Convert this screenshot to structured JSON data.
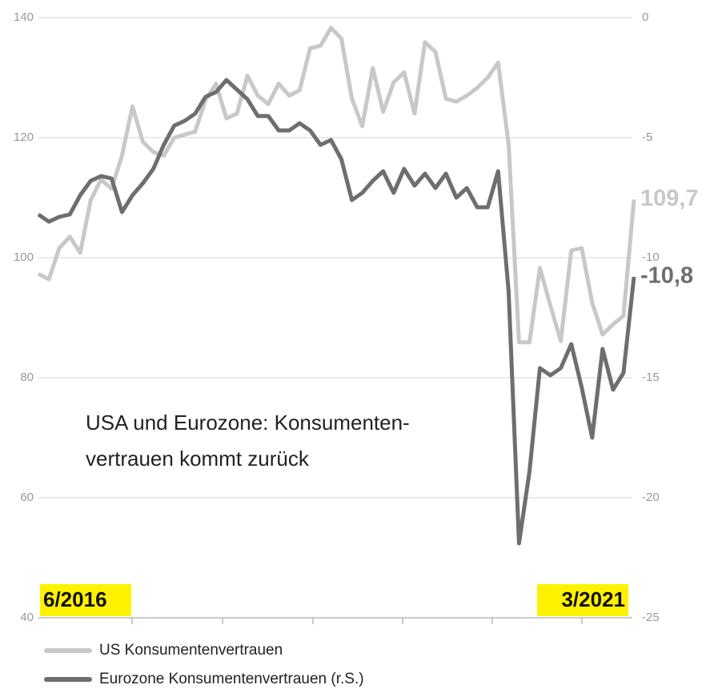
{
  "chart_data": {
    "type": "line",
    "title": [
      "USA und Eurozone: Konsumenten-",
      "vertrauen kommt zurück"
    ],
    "categories": [
      "6/2016",
      null,
      null,
      null,
      null,
      null,
      null,
      null,
      null,
      null,
      null,
      null,
      null,
      null,
      null,
      null,
      null,
      null,
      null,
      null,
      null,
      null,
      null,
      null,
      null,
      null,
      null,
      null,
      null,
      null,
      null,
      null,
      null,
      null,
      null,
      null,
      null,
      null,
      null,
      null,
      null,
      null,
      null,
      null,
      null,
      null,
      null,
      null,
      null,
      null,
      null,
      null,
      null,
      null,
      null,
      null,
      null,
      "3/2021"
    ],
    "ylim": [
      40,
      140
    ],
    "yticks": [
      40,
      60,
      80,
      100,
      120,
      140
    ],
    "y2lim": [
      -25,
      0
    ],
    "y2ticks": [
      -25,
      -20,
      -15,
      -10,
      -5,
      0
    ],
    "grid": true,
    "series": [
      {
        "name": "US Konsumentenvertrauen",
        "color": "#c8c8c8",
        "end_label": "109,7",
        "values": [
          97.3,
          96.4,
          101.6,
          103.5,
          100.8,
          109.6,
          113,
          111.5,
          117,
          125.2,
          119.3,
          117.6,
          117,
          120,
          120.5,
          121,
          126.3,
          129,
          123.2,
          124,
          130.3,
          127,
          125.6,
          129,
          127,
          127.9,
          134.9,
          135.3,
          138.3,
          136.5,
          126.5,
          121.9,
          131.6,
          124.3,
          129.2,
          130.9,
          124,
          135.9,
          134.3,
          126.5,
          126,
          127,
          128.3,
          130,
          132.5,
          118.9,
          85.9,
          85.9,
          98.3,
          92,
          86.1,
          101.2,
          101.6,
          92.5,
          87.2,
          88.9,
          90.3,
          109.7
        ]
      },
      {
        "name": "Eurozone Konsumentenvertrauen (r.S.)",
        "color": "#6e6e70",
        "axis": "y2",
        "end_label": "-10,8",
        "values": [
          -8.2,
          -8.5,
          -8.3,
          -8.2,
          -7.4,
          -6.8,
          -6.6,
          -6.7,
          -8.1,
          -7.4,
          -6.9,
          -6.3,
          -5.3,
          -4.5,
          -4.3,
          -4.0,
          -3.3,
          -3.1,
          -2.6,
          -3.0,
          -3.4,
          -4.1,
          -4.1,
          -4.7,
          -4.7,
          -4.4,
          -4.7,
          -5.3,
          -5.1,
          -5.9,
          -7.6,
          -7.3,
          -6.8,
          -6.4,
          -7.3,
          -6.3,
          -7.0,
          -6.5,
          -7.1,
          -6.5,
          -7.5,
          -7.1,
          -7.9,
          -7.9,
          -6.4,
          -11.4,
          -21.9,
          -18.9,
          -14.6,
          -14.9,
          -14.6,
          -13.6,
          -15.4,
          -17.5,
          -13.8,
          -15.5,
          -14.8,
          -10.8
        ]
      }
    ]
  }
}
